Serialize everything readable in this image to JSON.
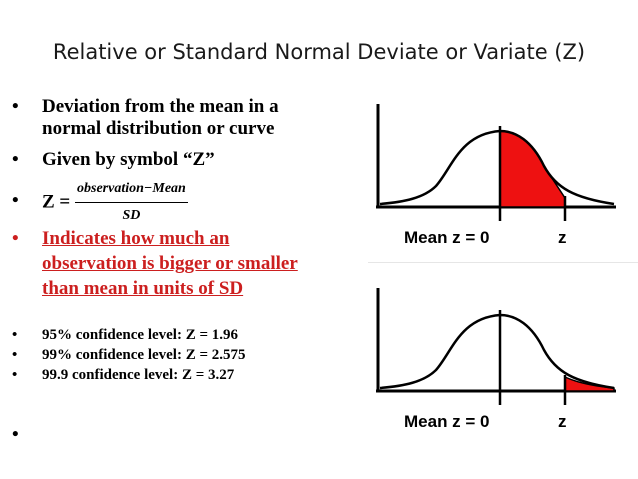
{
  "title": "Relative or Standard Normal Deviate or Variate (Z)",
  "bullets": [
    {
      "line1": "Deviation from the mean in a",
      "line2": "normal distribution or curve"
    },
    {
      "line1": "Given by symbol “Z”"
    },
    {
      "prefix": "Z =",
      "numerator": "observation−Mean",
      "denominator": "SD"
    },
    {
      "line1": "Indicates how much an",
      "line2": "observation is bigger or smaller",
      "line3": "than mean in units of SD"
    }
  ],
  "confidence": [
    "95% confidence level: Z = 1.96",
    "99% confidence level: Z = 2.575",
    "99.9 confidence level: Z = 3.27"
  ],
  "bullet_glyph": "•",
  "graph_top": {
    "mean_label": "Mean z = 0",
    "z_label": "z"
  },
  "graph_bottom": {
    "mean_label": "Mean z = 0",
    "z_label": "z"
  },
  "colors": {
    "shade": "#ee1111",
    "accent_text": "#cc1f1f"
  }
}
